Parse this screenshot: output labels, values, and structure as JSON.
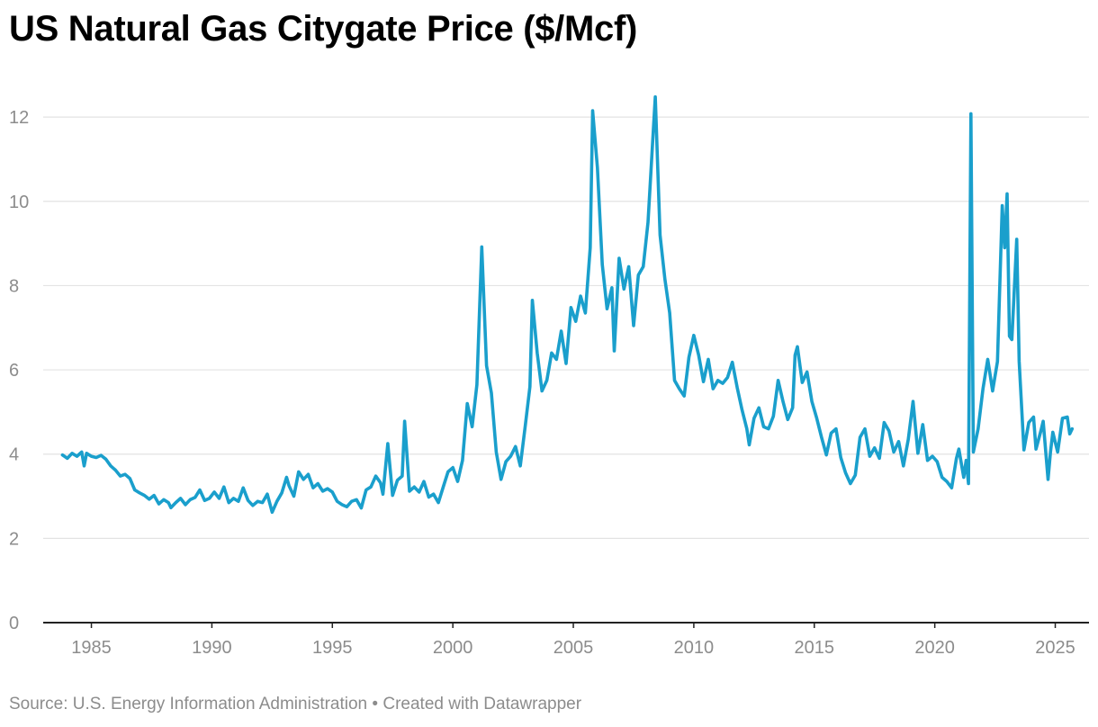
{
  "title": "US Natural Gas Citygate Price ($/Mcf)",
  "footer": {
    "source": "Source: U.S. Energy Information Administration",
    "separator": " • ",
    "credit": "Created with Datawrapper"
  },
  "colors": {
    "line": "#1a9fcc",
    "grid": "#e3e3e3",
    "axis": "#222222",
    "label": "#8c8c8c"
  },
  "chart_data": {
    "type": "line",
    "title": "US Natural Gas Citygate Price ($/Mcf)",
    "xlabel": "",
    "ylabel": "",
    "xlim": [
      1983.0,
      2026.4
    ],
    "ylim": [
      0,
      12.9
    ],
    "x_ticks": [
      1985,
      1990,
      1995,
      2000,
      2005,
      2010,
      2015,
      2020,
      2025
    ],
    "y_ticks": [
      0,
      2,
      4,
      6,
      8,
      10,
      12
    ],
    "grid": true,
    "legend": "none",
    "series": [
      {
        "name": "Citygate Price",
        "color": "#1a9fcc",
        "points": [
          [
            1983.8,
            3.98
          ],
          [
            1984.0,
            3.9
          ],
          [
            1984.2,
            4.02
          ],
          [
            1984.4,
            3.95
          ],
          [
            1984.6,
            4.05
          ],
          [
            1984.7,
            3.72
          ],
          [
            1984.8,
            4.02
          ],
          [
            1985.0,
            3.95
          ],
          [
            1985.2,
            3.92
          ],
          [
            1985.4,
            3.97
          ],
          [
            1985.6,
            3.88
          ],
          [
            1985.8,
            3.72
          ],
          [
            1986.0,
            3.62
          ],
          [
            1986.2,
            3.48
          ],
          [
            1986.4,
            3.52
          ],
          [
            1986.6,
            3.42
          ],
          [
            1986.8,
            3.15
          ],
          [
            1987.0,
            3.08
          ],
          [
            1987.2,
            3.02
          ],
          [
            1987.4,
            2.93
          ],
          [
            1987.6,
            3.02
          ],
          [
            1987.8,
            2.82
          ],
          [
            1988.0,
            2.92
          ],
          [
            1988.2,
            2.85
          ],
          [
            1988.3,
            2.73
          ],
          [
            1988.5,
            2.85
          ],
          [
            1988.7,
            2.95
          ],
          [
            1988.9,
            2.8
          ],
          [
            1989.1,
            2.92
          ],
          [
            1989.3,
            2.97
          ],
          [
            1989.5,
            3.15
          ],
          [
            1989.7,
            2.9
          ],
          [
            1989.9,
            2.95
          ],
          [
            1990.1,
            3.1
          ],
          [
            1990.3,
            2.95
          ],
          [
            1990.5,
            3.22
          ],
          [
            1990.7,
            2.85
          ],
          [
            1990.9,
            2.95
          ],
          [
            1991.1,
            2.88
          ],
          [
            1991.3,
            3.2
          ],
          [
            1991.5,
            2.9
          ],
          [
            1991.7,
            2.78
          ],
          [
            1991.9,
            2.88
          ],
          [
            1992.1,
            2.85
          ],
          [
            1992.3,
            3.05
          ],
          [
            1992.5,
            2.62
          ],
          [
            1992.7,
            2.88
          ],
          [
            1992.9,
            3.08
          ],
          [
            1993.1,
            3.45
          ],
          [
            1993.2,
            3.25
          ],
          [
            1993.4,
            3.0
          ],
          [
            1993.6,
            3.58
          ],
          [
            1993.8,
            3.4
          ],
          [
            1994.0,
            3.52
          ],
          [
            1994.2,
            3.2
          ],
          [
            1994.4,
            3.3
          ],
          [
            1994.6,
            3.12
          ],
          [
            1994.8,
            3.18
          ],
          [
            1995.0,
            3.1
          ],
          [
            1995.2,
            2.88
          ],
          [
            1995.4,
            2.8
          ],
          [
            1995.6,
            2.75
          ],
          [
            1995.8,
            2.88
          ],
          [
            1996.0,
            2.92
          ],
          [
            1996.2,
            2.72
          ],
          [
            1996.4,
            3.15
          ],
          [
            1996.6,
            3.22
          ],
          [
            1996.8,
            3.48
          ],
          [
            1997.0,
            3.32
          ],
          [
            1997.1,
            3.05
          ],
          [
            1997.3,
            4.25
          ],
          [
            1997.5,
            3.02
          ],
          [
            1997.7,
            3.38
          ],
          [
            1997.9,
            3.48
          ],
          [
            1998.0,
            4.78
          ],
          [
            1998.2,
            3.12
          ],
          [
            1998.4,
            3.22
          ],
          [
            1998.6,
            3.1
          ],
          [
            1998.8,
            3.35
          ],
          [
            1999.0,
            2.98
          ],
          [
            1999.2,
            3.05
          ],
          [
            1999.4,
            2.85
          ],
          [
            1999.6,
            3.22
          ],
          [
            1999.8,
            3.58
          ],
          [
            2000.0,
            3.68
          ],
          [
            2000.2,
            3.35
          ],
          [
            2000.4,
            3.85
          ],
          [
            2000.6,
            5.2
          ],
          [
            2000.8,
            4.65
          ],
          [
            2001.0,
            5.65
          ],
          [
            2001.2,
            8.92
          ],
          [
            2001.4,
            6.1
          ],
          [
            2001.6,
            5.45
          ],
          [
            2001.8,
            4.05
          ],
          [
            2002.0,
            3.4
          ],
          [
            2002.2,
            3.82
          ],
          [
            2002.4,
            3.95
          ],
          [
            2002.6,
            4.18
          ],
          [
            2002.8,
            3.72
          ],
          [
            2003.0,
            4.65
          ],
          [
            2003.2,
            5.6
          ],
          [
            2003.3,
            7.65
          ],
          [
            2003.5,
            6.4
          ],
          [
            2003.7,
            5.5
          ],
          [
            2003.9,
            5.75
          ],
          [
            2004.1,
            6.4
          ],
          [
            2004.3,
            6.25
          ],
          [
            2004.5,
            6.92
          ],
          [
            2004.7,
            6.15
          ],
          [
            2004.9,
            7.48
          ],
          [
            2005.1,
            7.15
          ],
          [
            2005.3,
            7.75
          ],
          [
            2005.5,
            7.35
          ],
          [
            2005.7,
            8.9
          ],
          [
            2005.8,
            12.15
          ],
          [
            2006.0,
            10.8
          ],
          [
            2006.2,
            8.5
          ],
          [
            2006.4,
            7.45
          ],
          [
            2006.6,
            7.95
          ],
          [
            2006.7,
            6.45
          ],
          [
            2006.9,
            8.65
          ],
          [
            2007.1,
            7.92
          ],
          [
            2007.3,
            8.45
          ],
          [
            2007.5,
            7.05
          ],
          [
            2007.7,
            8.25
          ],
          [
            2007.9,
            8.45
          ],
          [
            2008.1,
            9.5
          ],
          [
            2008.3,
            11.5
          ],
          [
            2008.4,
            12.48
          ],
          [
            2008.6,
            9.2
          ],
          [
            2008.8,
            8.15
          ],
          [
            2009.0,
            7.35
          ],
          [
            2009.2,
            5.75
          ],
          [
            2009.4,
            5.55
          ],
          [
            2009.6,
            5.38
          ],
          [
            2009.8,
            6.3
          ],
          [
            2010.0,
            6.82
          ],
          [
            2010.2,
            6.35
          ],
          [
            2010.4,
            5.72
          ],
          [
            2010.6,
            6.25
          ],
          [
            2010.8,
            5.55
          ],
          [
            2011.0,
            5.75
          ],
          [
            2011.2,
            5.68
          ],
          [
            2011.4,
            5.82
          ],
          [
            2011.6,
            6.18
          ],
          [
            2011.8,
            5.58
          ],
          [
            2012.0,
            5.05
          ],
          [
            2012.2,
            4.6
          ],
          [
            2012.3,
            4.22
          ],
          [
            2012.5,
            4.85
          ],
          [
            2012.7,
            5.1
          ],
          [
            2012.9,
            4.65
          ],
          [
            2013.1,
            4.6
          ],
          [
            2013.3,
            4.9
          ],
          [
            2013.5,
            5.75
          ],
          [
            2013.7,
            5.25
          ],
          [
            2013.9,
            4.82
          ],
          [
            2014.1,
            5.1
          ],
          [
            2014.2,
            6.35
          ],
          [
            2014.3,
            6.55
          ],
          [
            2014.5,
            5.7
          ],
          [
            2014.7,
            5.95
          ],
          [
            2014.9,
            5.25
          ],
          [
            2015.1,
            4.85
          ],
          [
            2015.3,
            4.4
          ],
          [
            2015.5,
            3.98
          ],
          [
            2015.7,
            4.5
          ],
          [
            2015.9,
            4.6
          ],
          [
            2016.1,
            3.92
          ],
          [
            2016.3,
            3.55
          ],
          [
            2016.5,
            3.3
          ],
          [
            2016.7,
            3.5
          ],
          [
            2016.9,
            4.4
          ],
          [
            2017.1,
            4.6
          ],
          [
            2017.3,
            3.95
          ],
          [
            2017.5,
            4.15
          ],
          [
            2017.7,
            3.9
          ],
          [
            2017.9,
            4.75
          ],
          [
            2018.1,
            4.55
          ],
          [
            2018.3,
            4.05
          ],
          [
            2018.5,
            4.3
          ],
          [
            2018.7,
            3.72
          ],
          [
            2018.9,
            4.35
          ],
          [
            2019.1,
            5.25
          ],
          [
            2019.3,
            4.02
          ],
          [
            2019.5,
            4.7
          ],
          [
            2019.7,
            3.85
          ],
          [
            2019.9,
            3.95
          ],
          [
            2020.1,
            3.82
          ],
          [
            2020.3,
            3.45
          ],
          [
            2020.5,
            3.35
          ],
          [
            2020.7,
            3.2
          ],
          [
            2020.9,
            3.9
          ],
          [
            2021.0,
            4.12
          ],
          [
            2021.2,
            3.45
          ],
          [
            2021.3,
            3.85
          ],
          [
            2021.4,
            3.3
          ],
          [
            2021.5,
            12.08
          ],
          [
            2021.6,
            4.05
          ],
          [
            2021.8,
            4.6
          ],
          [
            2022.0,
            5.55
          ],
          [
            2022.2,
            6.25
          ],
          [
            2022.4,
            5.5
          ],
          [
            2022.6,
            6.2
          ],
          [
            2022.8,
            9.9
          ],
          [
            2022.9,
            8.9
          ],
          [
            2023.0,
            10.18
          ],
          [
            2023.1,
            6.8
          ],
          [
            2023.2,
            6.72
          ],
          [
            2023.4,
            9.1
          ],
          [
            2023.5,
            6.2
          ],
          [
            2023.7,
            4.1
          ],
          [
            2023.9,
            4.75
          ],
          [
            2024.1,
            4.88
          ],
          [
            2024.2,
            4.12
          ],
          [
            2024.4,
            4.55
          ],
          [
            2024.5,
            4.78
          ],
          [
            2024.7,
            3.4
          ],
          [
            2024.8,
            4.05
          ],
          [
            2024.9,
            4.52
          ],
          [
            2025.1,
            4.05
          ],
          [
            2025.3,
            4.85
          ],
          [
            2025.5,
            4.88
          ],
          [
            2025.6,
            4.48
          ],
          [
            2025.7,
            4.6
          ]
        ]
      }
    ]
  }
}
